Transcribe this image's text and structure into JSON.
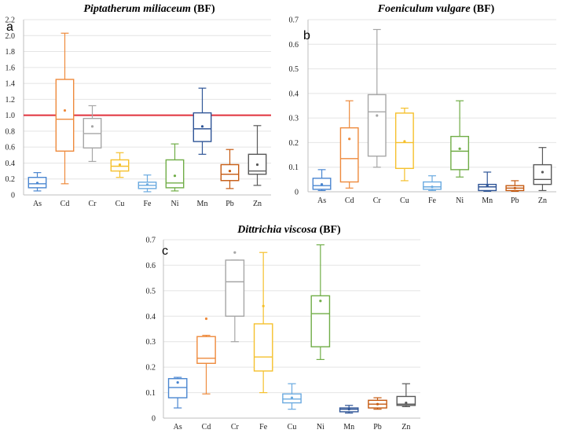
{
  "chart_data": [
    {
      "id": "a",
      "type": "box",
      "panel_label": "a",
      "title_italic": "Piptatherum miliaceum",
      "title_suffix": " (BF)",
      "ylim": [
        0,
        2.2
      ],
      "yticks": [
        "0",
        "0.2",
        "0.4",
        "0.6",
        "0.8",
        "1.0",
        "1.2",
        "1.4",
        "1.6",
        "1.8",
        "2.0",
        "2.2"
      ],
      "grid": true,
      "reference_line": {
        "y": 1.0,
        "color": "#e0323c"
      },
      "categories": [
        "As",
        "Cd",
        "Cr",
        "Cu",
        "Fe",
        "Ni",
        "Mn",
        "Pb",
        "Zn"
      ],
      "colors": [
        "#4a86d0",
        "#ee8a3c",
        "#a6a6a6",
        "#f5c02c",
        "#6aaae0",
        "#70ad47",
        "#2f5597",
        "#c55a11",
        "#595959"
      ],
      "boxes": [
        {
          "min": 0.05,
          "q1": 0.09,
          "median": 0.14,
          "q3": 0.22,
          "max": 0.28,
          "mean": 0.15
        },
        {
          "min": 0.14,
          "q1": 0.55,
          "median": 0.95,
          "q3": 1.45,
          "max": 2.03,
          "mean": 1.06
        },
        {
          "min": 0.42,
          "q1": 0.59,
          "median": 0.77,
          "q3": 0.96,
          "max": 1.12,
          "mean": 0.86
        },
        {
          "min": 0.22,
          "q1": 0.3,
          "median": 0.36,
          "q3": 0.44,
          "max": 0.53,
          "mean": 0.38
        },
        {
          "min": 0.04,
          "q1": 0.08,
          "median": 0.12,
          "q3": 0.16,
          "max": 0.25,
          "mean": 0.13
        },
        {
          "min": 0.05,
          "q1": 0.09,
          "median": 0.15,
          "q3": 0.44,
          "max": 0.64,
          "mean": 0.24
        },
        {
          "min": 0.51,
          "q1": 0.67,
          "median": 0.83,
          "q3": 1.03,
          "max": 1.34,
          "mean": 0.86
        },
        {
          "min": 0.08,
          "q1": 0.18,
          "median": 0.26,
          "q3": 0.38,
          "max": 0.57,
          "mean": 0.3
        },
        {
          "min": 0.12,
          "q1": 0.26,
          "median": 0.3,
          "q3": 0.51,
          "max": 0.87,
          "mean": 0.38
        }
      ]
    },
    {
      "id": "b",
      "type": "box",
      "panel_label": "b",
      "title_italic": "Foeniculum vulgare",
      "title_suffix": " (BF)",
      "ylim": [
        0,
        0.7
      ],
      "yticks": [
        "0",
        "0.1",
        "0.2",
        "0.3",
        "0.4",
        "0.5",
        "0.6",
        "0.7"
      ],
      "grid": true,
      "categories": [
        "As",
        "Cd",
        "Cr",
        "Cu",
        "Fe",
        "Ni",
        "Mn",
        "Pb",
        "Zn"
      ],
      "colors": [
        "#4a86d0",
        "#ee8a3c",
        "#a6a6a6",
        "#f5c02c",
        "#6aaae0",
        "#70ad47",
        "#2f5597",
        "#c55a11",
        "#595959"
      ],
      "boxes": [
        {
          "min": 0.005,
          "q1": 0.01,
          "median": 0.025,
          "q3": 0.055,
          "max": 0.09,
          "mean": 0.03
        },
        {
          "min": 0.015,
          "q1": 0.04,
          "median": 0.135,
          "q3": 0.26,
          "max": 0.37,
          "mean": 0.215
        },
        {
          "min": 0.1,
          "q1": 0.145,
          "median": 0.325,
          "q3": 0.395,
          "max": 0.66,
          "mean": 0.31
        },
        {
          "min": 0.045,
          "q1": 0.095,
          "median": 0.2,
          "q3": 0.32,
          "max": 0.34,
          "mean": 0.205
        },
        {
          "min": 0.005,
          "q1": 0.01,
          "median": 0.02,
          "q3": 0.04,
          "max": 0.065,
          "mean": 0.02
        },
        {
          "min": 0.06,
          "q1": 0.09,
          "median": 0.165,
          "q3": 0.225,
          "max": 0.37,
          "mean": 0.175
        },
        {
          "min": 0.002,
          "q1": 0.005,
          "median": 0.02,
          "q3": 0.03,
          "max": 0.08,
          "mean": 0.025
        },
        {
          "min": 0.002,
          "q1": 0.005,
          "median": 0.015,
          "q3": 0.025,
          "max": 0.045,
          "mean": 0.015
        },
        {
          "min": 0.005,
          "q1": 0.03,
          "median": 0.05,
          "q3": 0.11,
          "max": 0.18,
          "mean": 0.08
        }
      ]
    },
    {
      "id": "c",
      "type": "box",
      "panel_label": "c",
      "title_italic": "Dittrichia viscosa",
      "title_suffix": " (BF)",
      "ylim": [
        0,
        0.7
      ],
      "yticks": [
        "0",
        "0.1",
        "0.2",
        "0.3",
        "0.4",
        "0.5",
        "0.6",
        "0.7"
      ],
      "grid": true,
      "categories": [
        "As",
        "Cd",
        "Cr",
        "Fe",
        "Cu",
        "Ni",
        "Mn",
        "Pb",
        "Zn"
      ],
      "colors": [
        "#4a86d0",
        "#ee8a3c",
        "#a6a6a6",
        "#f5c02c",
        "#6aaae0",
        "#70ad47",
        "#2f5597",
        "#c55a11",
        "#595959"
      ],
      "boxes": [
        {
          "min": 0.04,
          "q1": 0.08,
          "median": 0.12,
          "q3": 0.155,
          "max": 0.16,
          "mean": 0.14
        },
        {
          "min": 0.095,
          "q1": 0.215,
          "median": 0.235,
          "q3": 0.32,
          "max": 0.325,
          "mean": 0.39
        },
        {
          "min": 0.3,
          "q1": 0.4,
          "median": 0.535,
          "q3": 0.62,
          "max": 0.62,
          "mean": 0.65
        },
        {
          "min": 0.1,
          "q1": 0.185,
          "median": 0.24,
          "q3": 0.37,
          "max": 0.65,
          "mean": 0.44
        },
        {
          "min": 0.035,
          "q1": 0.06,
          "median": 0.075,
          "q3": 0.095,
          "max": 0.135,
          "mean": 0.08
        },
        {
          "min": 0.23,
          "q1": 0.28,
          "median": 0.41,
          "q3": 0.48,
          "max": 0.68,
          "mean": 0.46
        },
        {
          "min": 0.02,
          "q1": 0.025,
          "median": 0.035,
          "q3": 0.04,
          "max": 0.05,
          "mean": 0.035
        },
        {
          "min": 0.035,
          "q1": 0.04,
          "median": 0.055,
          "q3": 0.07,
          "max": 0.08,
          "mean": 0.055
        },
        {
          "min": 0.045,
          "q1": 0.05,
          "median": 0.055,
          "q3": 0.085,
          "max": 0.135,
          "mean": 0.06
        }
      ]
    }
  ]
}
